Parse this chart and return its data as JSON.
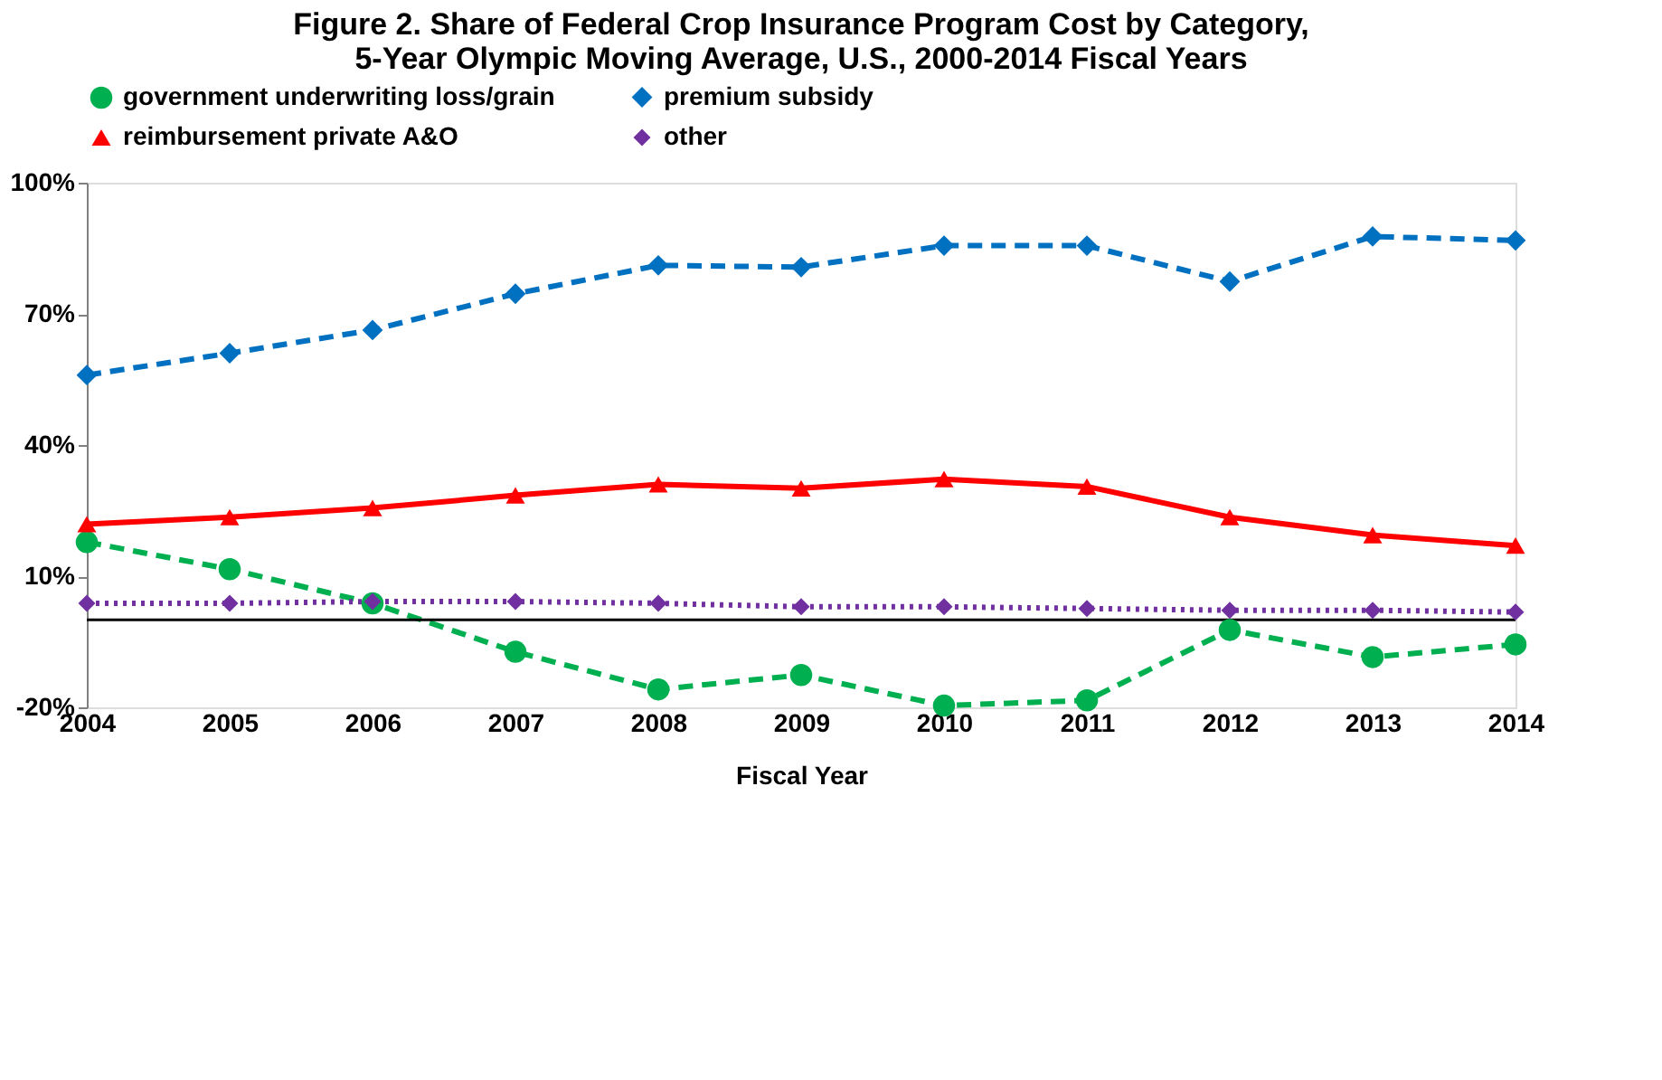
{
  "chart_data": {
    "type": "line",
    "title": "Figure 2. Share of Federal Crop Insurance Program Cost by Category,\n5-Year Olympic  Moving Average, U.S., 2000-2014 Fiscal Years",
    "xlabel": "Fiscal Year",
    "categories": [
      "2004",
      "2005",
      "2006",
      "2007",
      "2008",
      "2009",
      "2010",
      "2011",
      "2012",
      "2013",
      "2014"
    ],
    "series": [
      {
        "name": "government underwriting loss/grain",
        "color": "#00b050",
        "marker": "circle",
        "line_style": "dashed",
        "values": [
          17.8,
          11.6,
          3.8,
          -7.3,
          -15.9,
          -12.6,
          -19.6,
          -18.4,
          -2.3,
          -8.5,
          -5.6
        ]
      },
      {
        "name": "premium subsidy",
        "color": "#0070c0",
        "marker": "diamond",
        "line_style": "dashed",
        "values": [
          56.0,
          61.0,
          66.3,
          74.6,
          81.1,
          80.7,
          85.6,
          85.6,
          77.4,
          87.7,
          86.8
        ]
      },
      {
        "name": "reimbursement private A&O",
        "color": "#ff0000",
        "marker": "triangle",
        "line_style": "solid",
        "values": [
          21.9,
          23.5,
          25.6,
          28.5,
          31.0,
          30.1,
          32.2,
          30.5,
          23.5,
          19.4,
          17.0
        ]
      },
      {
        "name": "other",
        "color": "#7030a0",
        "marker": "diamond",
        "line_style": "dotted",
        "values": [
          3.8,
          3.8,
          4.2,
          4.2,
          3.8,
          3.0,
          3.0,
          2.6,
          2.2,
          2.2,
          1.8
        ]
      }
    ],
    "ylim": [
      -20,
      100
    ],
    "yticks": [
      {
        "value": -20,
        "label": "-20%"
      },
      {
        "value": 10,
        "label": "10%"
      },
      {
        "value": 40,
        "label": "40%"
      },
      {
        "value": 70,
        "label": "70%"
      },
      {
        "value": 100,
        "label": "100%"
      }
    ],
    "ref_lines": [
      {
        "axis": "y",
        "value": 0,
        "label": null,
        "color": "#000000"
      }
    ],
    "grid": false,
    "legend": "top"
  }
}
